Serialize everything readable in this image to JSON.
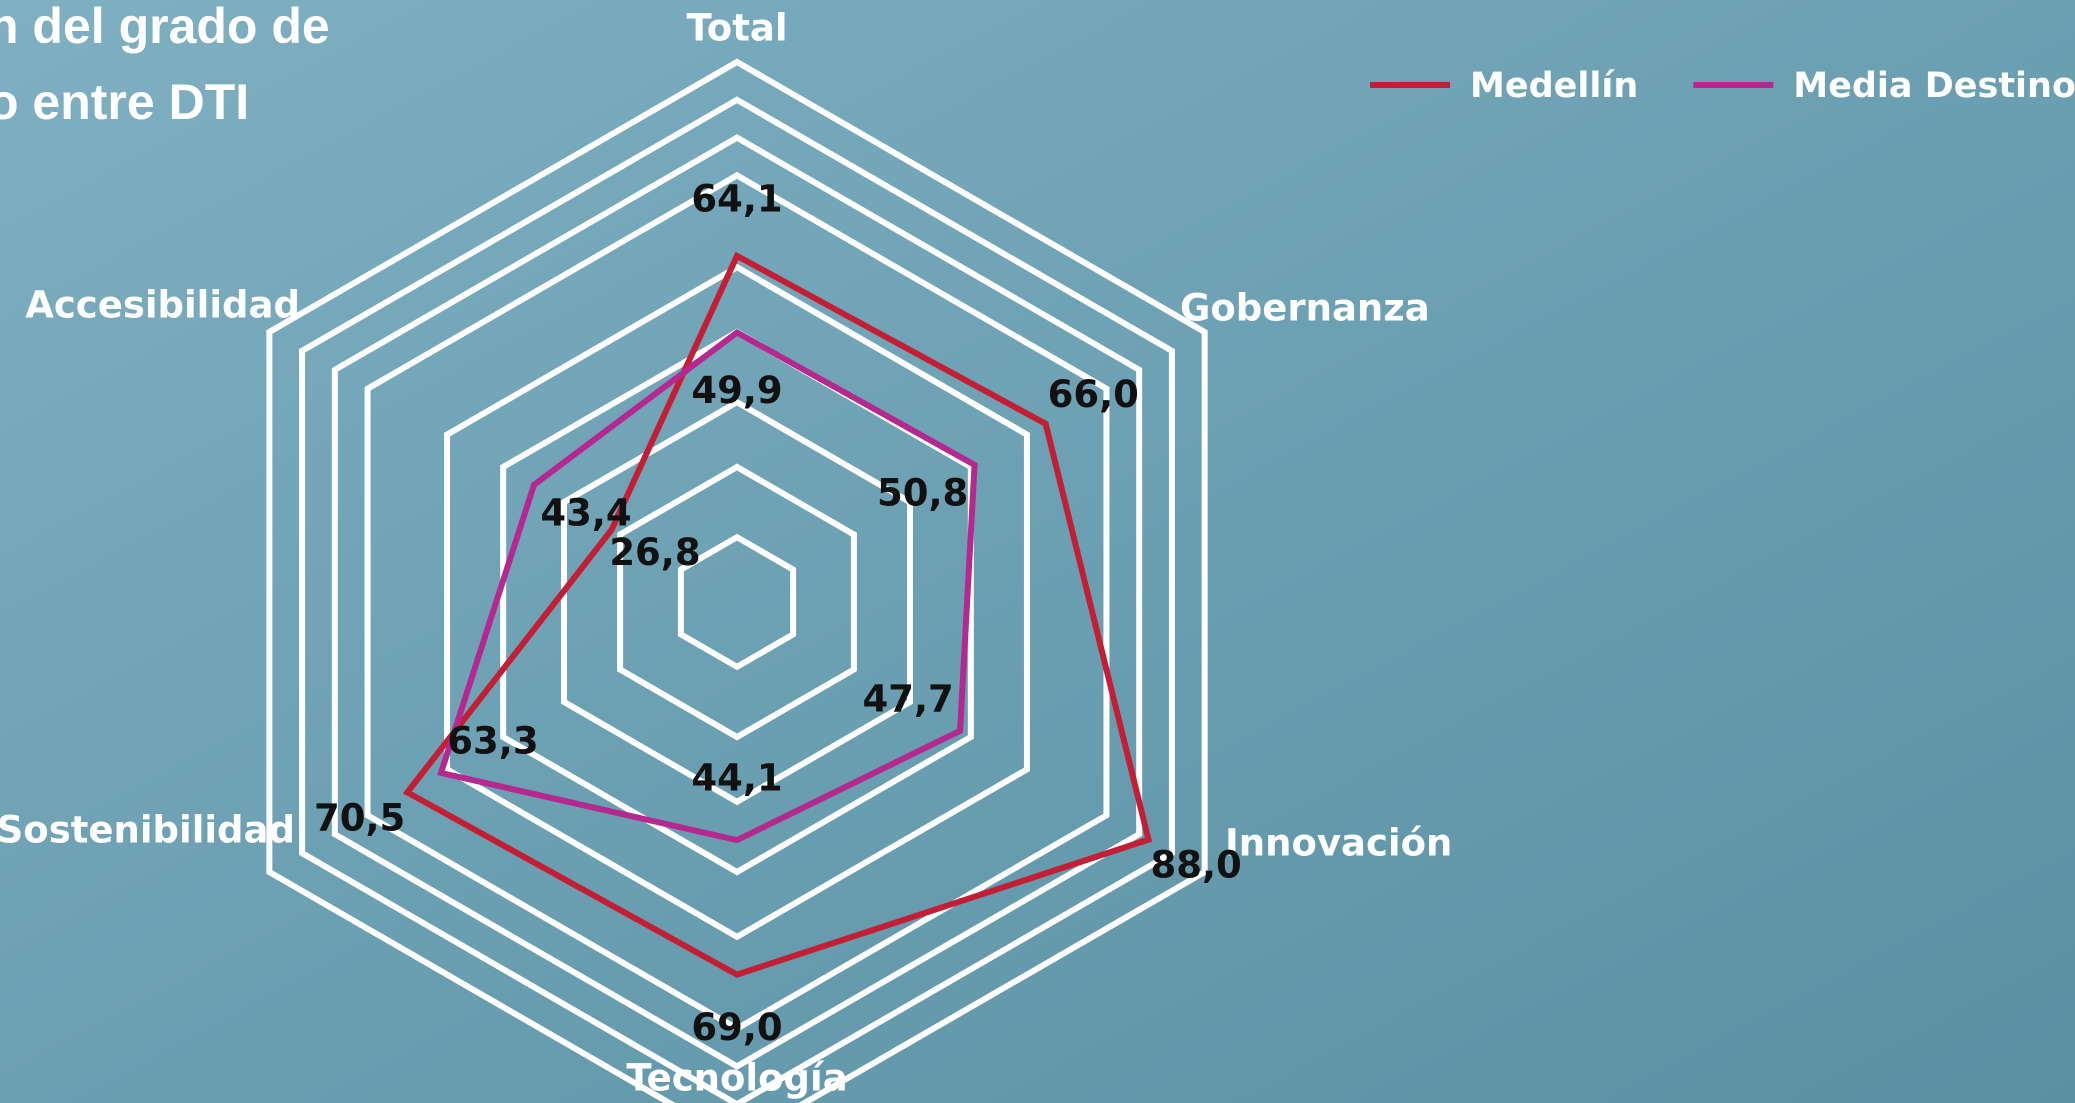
{
  "chart_data": {
    "type": "radar",
    "title_lines": [
      "n del grado de",
      "o entre DTI"
    ],
    "categories": [
      "Total",
      "Gobernanza",
      "Innovación",
      "Tecnología",
      "Sostenibilidad",
      "Accesibilidad"
    ],
    "ylim": [
      0,
      100
    ],
    "series": [
      {
        "name": "Medellín",
        "color": "#c41e34",
        "values": [
          64.1,
          66.0,
          88.0,
          69.0,
          70.5,
          26.8
        ],
        "value_labels": [
          "64,1",
          "66,0",
          "88,0",
          "69,0",
          "70,5",
          "26,8"
        ]
      },
      {
        "name": "Media Destinos",
        "color": "#b5288f",
        "values": [
          49.9,
          50.8,
          47.7,
          44.1,
          63.3,
          43.4
        ],
        "value_labels": [
          "49,9",
          "50,8",
          "47,7",
          "44,1",
          "63,3",
          "43,4"
        ]
      }
    ],
    "legend_position": "top-right"
  }
}
